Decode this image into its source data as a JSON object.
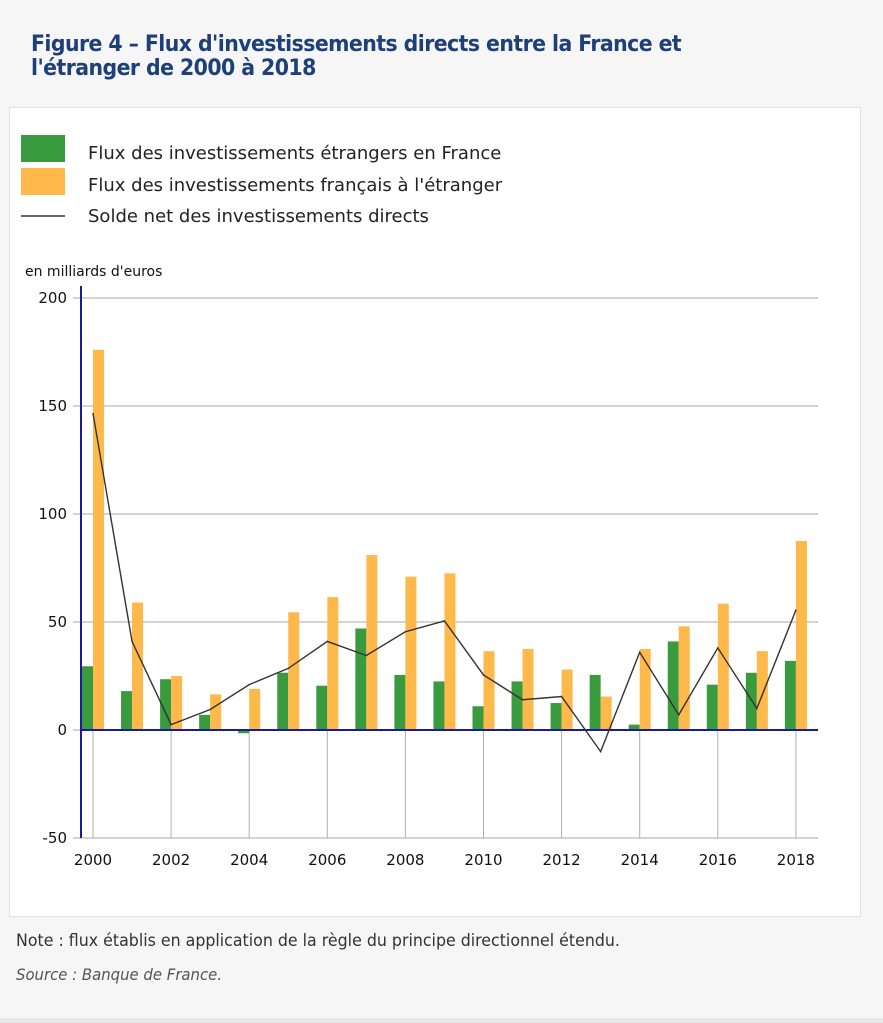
{
  "figure": {
    "title": "Figure 4 – Flux d'investissements directs entre la France et l'étranger de 2000 à 2018",
    "note": "Note : flux établis en application de la règle du principe directionnel étendu.",
    "source": "Source : Banque de France."
  },
  "colors": {
    "foreign_in_france": "#3a9a3e",
    "french_abroad": "#ffb84a",
    "net_balance": "#333333",
    "axis": "#1a1a9a",
    "grid": "#aaaaaa"
  },
  "chart_data": {
    "type": "bar",
    "title": "Flux d'investissements directs entre la France et l'étranger de 2000 à 2018",
    "ylabel": "en milliards d'euros",
    "xlabel": "",
    "ylim": [
      -50,
      200
    ],
    "yticks": [
      200,
      150,
      100,
      50,
      0,
      -50
    ],
    "grid": true,
    "legend_position": "top-left",
    "categories": [
      "2000",
      "2001",
      "2002",
      "2003",
      "2004",
      "2005",
      "2006",
      "2007",
      "2008",
      "2009",
      "2010",
      "2011",
      "2012",
      "2013",
      "2014",
      "2015",
      "2016",
      "2017",
      "2018"
    ],
    "xtick_labels": [
      "2000",
      "2002",
      "2004",
      "2006",
      "2008",
      "2010",
      "2012",
      "2014",
      "2016",
      "2018"
    ],
    "series": [
      {
        "name": "Flux des investissements étrangers en France",
        "type": "bar",
        "values": [
          29.5,
          18.0,
          23.5,
          7.0,
          -1.5,
          26.5,
          20.5,
          47.0,
          25.5,
          22.5,
          11.0,
          22.5,
          12.5,
          25.5,
          2.5,
          41.0,
          21.0,
          26.5,
          32.0
        ]
      },
      {
        "name": "Flux des investissements français à l'étranger",
        "type": "bar",
        "values": [
          176.0,
          59.0,
          25.0,
          16.5,
          19.0,
          54.5,
          61.5,
          81.0,
          71.0,
          72.5,
          36.5,
          37.5,
          28.0,
          15.5,
          37.5,
          48.0,
          58.5,
          36.5,
          87.5
        ]
      },
      {
        "name": "Solde net des investissements directs",
        "type": "line",
        "values": [
          146.5,
          41.0,
          2.5,
          9.5,
          21.0,
          28.5,
          41.0,
          34.5,
          45.5,
          50.5,
          25.5,
          14.0,
          15.5,
          -10.0,
          36.0,
          7.0,
          38.0,
          10.0,
          55.5
        ]
      }
    ]
  }
}
